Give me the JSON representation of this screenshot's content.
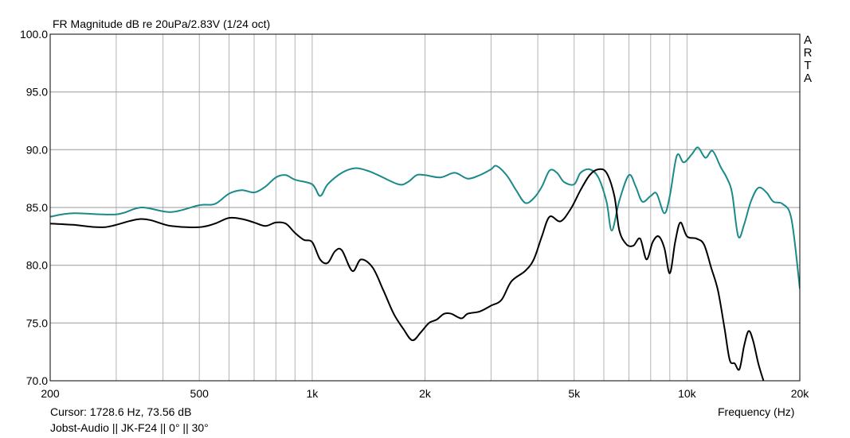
{
  "chart_data": {
    "type": "line",
    "title": "FR Magnitude dB re 20uPa/2.83V (1/24 oct)",
    "xlabel": "Frequency (Hz)",
    "ylabel": "",
    "x_scale": "log",
    "xlim": [
      200,
      20000
    ],
    "ylim": [
      70,
      100
    ],
    "x_ticks": [
      200,
      500,
      1000,
      2000,
      5000,
      10000,
      20000
    ],
    "x_tick_labels": [
      "200",
      "500",
      "1k",
      "2k",
      "5k",
      "10k",
      "20k"
    ],
    "y_ticks": [
      70,
      75,
      80,
      85,
      90,
      95,
      100
    ],
    "y_tick_labels": [
      "70.0",
      "75.0",
      "80.0",
      "85.0",
      "90.0",
      "95.0",
      "100.0"
    ],
    "grid": true,
    "series": [
      {
        "color": "#1a8a8a",
        "points": [
          [
            200,
            84.2
          ],
          [
            230,
            84.5
          ],
          [
            300,
            84.4
          ],
          [
            350,
            85.0
          ],
          [
            420,
            84.6
          ],
          [
            500,
            85.2
          ],
          [
            550,
            85.3
          ],
          [
            600,
            86.2
          ],
          [
            650,
            86.5
          ],
          [
            700,
            86.3
          ],
          [
            750,
            86.8
          ],
          [
            800,
            87.6
          ],
          [
            850,
            87.8
          ],
          [
            900,
            87.4
          ],
          [
            1000,
            87.0
          ],
          [
            1050,
            86.0
          ],
          [
            1100,
            87.0
          ],
          [
            1200,
            88.0
          ],
          [
            1300,
            88.4
          ],
          [
            1400,
            88.2
          ],
          [
            1500,
            87.8
          ],
          [
            1700,
            87.0
          ],
          [
            1800,
            87.2
          ],
          [
            1900,
            87.8
          ],
          [
            2000,
            87.8
          ],
          [
            2200,
            87.6
          ],
          [
            2400,
            88.0
          ],
          [
            2600,
            87.5
          ],
          [
            2800,
            87.8
          ],
          [
            3000,
            88.3
          ],
          [
            3100,
            88.6
          ],
          [
            3300,
            87.8
          ],
          [
            3500,
            86.5
          ],
          [
            3700,
            85.4
          ],
          [
            3900,
            85.8
          ],
          [
            4100,
            86.8
          ],
          [
            4300,
            88.2
          ],
          [
            4500,
            88.0
          ],
          [
            4700,
            87.2
          ],
          [
            5000,
            87.0
          ],
          [
            5200,
            88.0
          ],
          [
            5500,
            88.3
          ],
          [
            5800,
            87.6
          ],
          [
            6100,
            85.5
          ],
          [
            6300,
            83.0
          ],
          [
            6600,
            85.6
          ],
          [
            7000,
            87.8
          ],
          [
            7300,
            86.8
          ],
          [
            7600,
            85.5
          ],
          [
            8000,
            86.0
          ],
          [
            8300,
            86.2
          ],
          [
            8700,
            84.5
          ],
          [
            9000,
            86.0
          ],
          [
            9400,
            89.5
          ],
          [
            9800,
            88.9
          ],
          [
            10300,
            89.6
          ],
          [
            10700,
            90.2
          ],
          [
            11200,
            89.3
          ],
          [
            11700,
            89.9
          ],
          [
            12300,
            88.5
          ],
          [
            12800,
            87.5
          ],
          [
            13200,
            86.2
          ],
          [
            13700,
            82.5
          ],
          [
            14200,
            83.5
          ],
          [
            14800,
            85.5
          ],
          [
            15500,
            86.7
          ],
          [
            16300,
            86.3
          ],
          [
            17000,
            85.5
          ],
          [
            18000,
            85.3
          ],
          [
            19000,
            84.0
          ],
          [
            20000,
            78.0
          ]
        ]
      },
      {
        "color": "#000000",
        "points": [
          [
            200,
            83.6
          ],
          [
            230,
            83.5
          ],
          [
            280,
            83.3
          ],
          [
            350,
            84.0
          ],
          [
            420,
            83.4
          ],
          [
            500,
            83.3
          ],
          [
            550,
            83.6
          ],
          [
            600,
            84.1
          ],
          [
            650,
            84.0
          ],
          [
            700,
            83.7
          ],
          [
            750,
            83.4
          ],
          [
            800,
            83.7
          ],
          [
            850,
            83.6
          ],
          [
            900,
            82.8
          ],
          [
            950,
            82.2
          ],
          [
            1000,
            82.0
          ],
          [
            1050,
            80.5
          ],
          [
            1100,
            80.2
          ],
          [
            1150,
            81.2
          ],
          [
            1200,
            81.3
          ],
          [
            1280,
            79.5
          ],
          [
            1350,
            80.5
          ],
          [
            1450,
            79.8
          ],
          [
            1550,
            77.8
          ],
          [
            1650,
            75.8
          ],
          [
            1750,
            74.5
          ],
          [
            1850,
            73.5
          ],
          [
            1950,
            74.2
          ],
          [
            2050,
            75.0
          ],
          [
            2150,
            75.3
          ],
          [
            2250,
            75.8
          ],
          [
            2350,
            75.8
          ],
          [
            2500,
            75.4
          ],
          [
            2600,
            75.8
          ],
          [
            2800,
            76.0
          ],
          [
            3000,
            76.5
          ],
          [
            3200,
            77.0
          ],
          [
            3400,
            78.6
          ],
          [
            3700,
            79.5
          ],
          [
            3900,
            80.5
          ],
          [
            4100,
            82.5
          ],
          [
            4300,
            84.2
          ],
          [
            4600,
            83.8
          ],
          [
            4900,
            84.9
          ],
          [
            5200,
            86.5
          ],
          [
            5500,
            87.8
          ],
          [
            5800,
            88.3
          ],
          [
            6100,
            88.0
          ],
          [
            6400,
            86.0
          ],
          [
            6600,
            83.0
          ],
          [
            6900,
            81.8
          ],
          [
            7200,
            81.7
          ],
          [
            7500,
            82.3
          ],
          [
            7800,
            80.5
          ],
          [
            8100,
            82.0
          ],
          [
            8400,
            82.5
          ],
          [
            8700,
            81.5
          ],
          [
            9000,
            79.3
          ],
          [
            9300,
            82.0
          ],
          [
            9600,
            83.7
          ],
          [
            10000,
            82.5
          ],
          [
            10600,
            82.3
          ],
          [
            11100,
            81.8
          ],
          [
            11600,
            79.8
          ],
          [
            12100,
            77.8
          ],
          [
            12600,
            74.5
          ],
          [
            13000,
            71.8
          ],
          [
            13400,
            71.5
          ],
          [
            13800,
            71.0
          ],
          [
            14200,
            73.0
          ],
          [
            14600,
            74.3
          ],
          [
            15000,
            73.5
          ],
          [
            15500,
            71.5
          ],
          [
            16000,
            70.0
          ]
        ]
      }
    ]
  },
  "footer": {
    "cursor": "Cursor: 1728.6 Hz, 73.56 dB",
    "info": "Jobst-Audio  ||  JK-F24  ||  0°  ||  30°"
  },
  "brand": [
    "A",
    "R",
    "T",
    "A"
  ]
}
